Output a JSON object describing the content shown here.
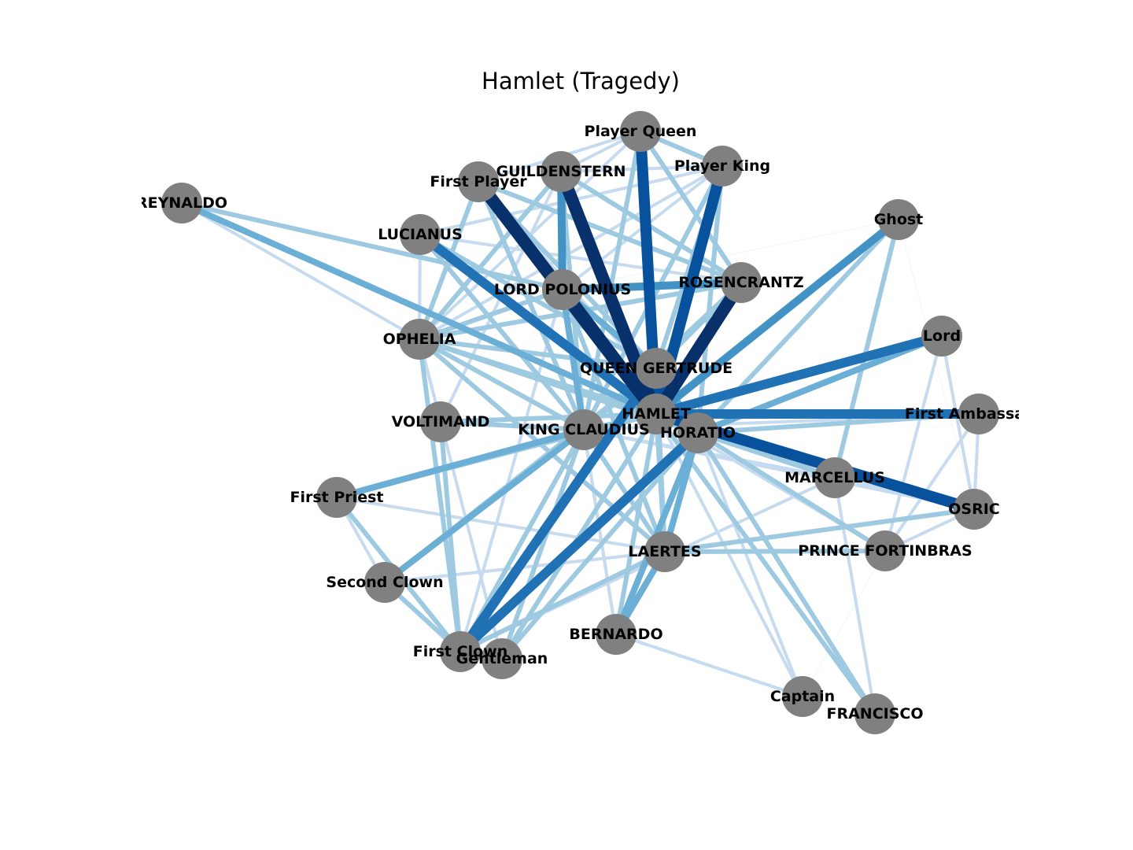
{
  "title": "Hamlet (Tragedy)",
  "colors": {
    "node": "#808080",
    "label": "#000000",
    "edge_scale": [
      "#deebf7",
      "#c6dbef",
      "#9ecae1",
      "#6baed6",
      "#4292c6",
      "#2171b5",
      "#08519c",
      "#08306b"
    ]
  },
  "chart_data": {
    "type": "network",
    "title": "Hamlet (Tragedy)",
    "nodes": [
      {
        "id": "REYNALDO",
        "label": "REYNALDO"
      },
      {
        "id": "First Player",
        "label": "First Player"
      },
      {
        "id": "GUILDENSTERN",
        "label": "GUILDENSTERN"
      },
      {
        "id": "Player Queen",
        "label": "Player Queen"
      },
      {
        "id": "Player King",
        "label": "Player King"
      },
      {
        "id": "Ghost",
        "label": "Ghost"
      },
      {
        "id": "LUCIANUS",
        "label": "LUCIANUS"
      },
      {
        "id": "LORD POLONIUS",
        "label": "LORD POLONIUS"
      },
      {
        "id": "ROSENCRANTZ",
        "label": "ROSENCRANTZ"
      },
      {
        "id": "Lord",
        "label": "Lord"
      },
      {
        "id": "OPHELIA",
        "label": "OPHELIA"
      },
      {
        "id": "QUEEN GERTRUDE",
        "label": "QUEEN GERTRUDE"
      },
      {
        "id": "First Ambassador",
        "label": "First Ambassador"
      },
      {
        "id": "HAMLET",
        "label": "HAMLET"
      },
      {
        "id": "VOLTIMAND",
        "label": "VOLTIMAND"
      },
      {
        "id": "KING CLAUDIUS",
        "label": "KING CLAUDIUS"
      },
      {
        "id": "HORATIO",
        "label": "HORATIO"
      },
      {
        "id": "MARCELLUS",
        "label": "MARCELLUS"
      },
      {
        "id": "First Priest",
        "label": "First Priest"
      },
      {
        "id": "OSRIC",
        "label": "OSRIC"
      },
      {
        "id": "LAERTES",
        "label": "LAERTES"
      },
      {
        "id": "PRINCE FORTINBRAS",
        "label": "PRINCE FORTINBRAS"
      },
      {
        "id": "Second Clown",
        "label": "Second Clown"
      },
      {
        "id": "BERNARDO",
        "label": "BERNARDO"
      },
      {
        "id": "First Clown",
        "label": "First Clown"
      },
      {
        "id": "Gentleman",
        "label": "Gentleman"
      },
      {
        "id": "Captain",
        "label": "Captain"
      },
      {
        "id": "FRANCISCO",
        "label": "FRANCISCO"
      }
    ],
    "edges": [
      {
        "source": "REYNALDO",
        "target": "HAMLET",
        "weight": 3
      },
      {
        "source": "REYNALDO",
        "target": "OPHELIA",
        "weight": 1
      },
      {
        "source": "REYNALDO",
        "target": "LORD POLONIUS",
        "weight": 2
      },
      {
        "source": "First Player",
        "target": "HAMLET",
        "weight": 7
      },
      {
        "source": "First Player",
        "target": "KING CLAUDIUS",
        "weight": 2
      },
      {
        "source": "First Player",
        "target": "QUEEN GERTRUDE",
        "weight": 2
      },
      {
        "source": "First Player",
        "target": "ROSENCRANTZ",
        "weight": 2
      },
      {
        "source": "First Player",
        "target": "LORD POLONIUS",
        "weight": 2
      },
      {
        "source": "First Player",
        "target": "OPHELIA",
        "weight": 2
      },
      {
        "source": "First Player",
        "target": "HORATIO",
        "weight": 1
      },
      {
        "source": "GUILDENSTERN",
        "target": "HAMLET",
        "weight": 7
      },
      {
        "source": "GUILDENSTERN",
        "target": "LORD POLONIUS",
        "weight": 4
      },
      {
        "source": "GUILDENSTERN",
        "target": "ROSENCRANTZ",
        "weight": 2
      },
      {
        "source": "GUILDENSTERN",
        "target": "Player King",
        "weight": 1
      },
      {
        "source": "GUILDENSTERN",
        "target": "OPHELIA",
        "weight": 2
      },
      {
        "source": "GUILDENSTERN",
        "target": "KING CLAUDIUS",
        "weight": 2
      },
      {
        "source": "GUILDENSTERN",
        "target": "VOLTIMAND",
        "weight": 1
      },
      {
        "source": "GUILDENSTERN",
        "target": "Player Queen",
        "weight": 1
      },
      {
        "source": "Player Queen",
        "target": "HAMLET",
        "weight": 6
      },
      {
        "source": "Player Queen",
        "target": "Player King",
        "weight": 2
      },
      {
        "source": "Player Queen",
        "target": "QUEEN GERTRUDE",
        "weight": 2
      },
      {
        "source": "Player Queen",
        "target": "ROSENCRANTZ",
        "weight": 2
      },
      {
        "source": "Player Queen",
        "target": "OPHELIA",
        "weight": 1
      },
      {
        "source": "Player Queen",
        "target": "First Player",
        "weight": 1
      },
      {
        "source": "Player Queen",
        "target": "KING CLAUDIUS",
        "weight": 2
      },
      {
        "source": "Player King",
        "target": "HAMLET",
        "weight": 6
      },
      {
        "source": "Player King",
        "target": "QUEEN GERTRUDE",
        "weight": 2
      },
      {
        "source": "Player King",
        "target": "LORD POLONIUS",
        "weight": 1
      },
      {
        "source": "Player King",
        "target": "OPHELIA",
        "weight": 1
      },
      {
        "source": "Player King",
        "target": "KING CLAUDIUS",
        "weight": 2
      },
      {
        "source": "Player King",
        "target": "HORATIO",
        "weight": 2
      },
      {
        "source": "Player King",
        "target": "LUCIANUS",
        "weight": 1
      },
      {
        "source": "Ghost",
        "target": "HAMLET",
        "weight": 4
      },
      {
        "source": "Ghost",
        "target": "MARCELLUS",
        "weight": 2
      },
      {
        "source": "Ghost",
        "target": "HORATIO",
        "weight": 2
      },
      {
        "source": "Ghost",
        "target": "LORD POLONIUS",
        "weight": 0
      },
      {
        "source": "Ghost",
        "target": "OSRIC",
        "weight": 0
      },
      {
        "source": "LUCIANUS",
        "target": "HAMLET",
        "weight": 5
      },
      {
        "source": "LUCIANUS",
        "target": "QUEEN GERTRUDE",
        "weight": 2
      },
      {
        "source": "LUCIANUS",
        "target": "OPHELIA",
        "weight": 1
      },
      {
        "source": "LUCIANUS",
        "target": "KING CLAUDIUS",
        "weight": 2
      },
      {
        "source": "LORD POLONIUS",
        "target": "HAMLET",
        "weight": 7
      },
      {
        "source": "LORD POLONIUS",
        "target": "ROSENCRANTZ",
        "weight": 4
      },
      {
        "source": "LORD POLONIUS",
        "target": "QUEEN GERTRUDE",
        "weight": 3
      },
      {
        "source": "LORD POLONIUS",
        "target": "KING CLAUDIUS",
        "weight": 3
      },
      {
        "source": "LORD POLONIUS",
        "target": "OPHELIA",
        "weight": 2
      },
      {
        "source": "LORD POLONIUS",
        "target": "LAERTES",
        "weight": 2
      },
      {
        "source": "LORD POLONIUS",
        "target": "First Clown",
        "weight": 1
      },
      {
        "source": "ROSENCRANTZ",
        "target": "HAMLET",
        "weight": 7
      },
      {
        "source": "ROSENCRANTZ",
        "target": "OPHELIA",
        "weight": 2
      },
      {
        "source": "ROSENCRANTZ",
        "target": "KING CLAUDIUS",
        "weight": 2
      },
      {
        "source": "ROSENCRANTZ",
        "target": "QUEEN GERTRUDE",
        "weight": 2
      },
      {
        "source": "ROSENCRANTZ",
        "target": "LUCIANUS",
        "weight": 1
      },
      {
        "source": "Lord",
        "target": "HAMLET",
        "weight": 5
      },
      {
        "source": "Lord",
        "target": "HORATIO",
        "weight": 3
      },
      {
        "source": "Lord",
        "target": "OSRIC",
        "weight": 1
      },
      {
        "source": "Lord",
        "target": "PRINCE FORTINBRAS",
        "weight": 1
      },
      {
        "source": "OPHELIA",
        "target": "HAMLET",
        "weight": 2
      },
      {
        "source": "OPHELIA",
        "target": "QUEEN GERTRUDE",
        "weight": 2
      },
      {
        "source": "OPHELIA",
        "target": "KING CLAUDIUS",
        "weight": 2
      },
      {
        "source": "OPHELIA",
        "target": "LAERTES",
        "weight": 2
      },
      {
        "source": "OPHELIA",
        "target": "First Clown",
        "weight": 2
      },
      {
        "source": "OPHELIA",
        "target": "VOLTIMAND",
        "weight": 1
      },
      {
        "source": "OPHELIA",
        "target": "HORATIO",
        "weight": 2
      },
      {
        "source": "OPHELIA",
        "target": "Gentleman",
        "weight": 1
      },
      {
        "source": "QUEEN GERTRUDE",
        "target": "HAMLET",
        "weight": 5
      },
      {
        "source": "QUEEN GERTRUDE",
        "target": "HORATIO",
        "weight": 3
      },
      {
        "source": "QUEEN GERTRUDE",
        "target": "First Clown",
        "weight": 5
      },
      {
        "source": "QUEEN GERTRUDE",
        "target": "LAERTES",
        "weight": 2
      },
      {
        "source": "QUEEN GERTRUDE",
        "target": "Second Clown",
        "weight": 2
      },
      {
        "source": "QUEEN GERTRUDE",
        "target": "KING CLAUDIUS",
        "weight": 2
      },
      {
        "source": "First Ambassador",
        "target": "HAMLET",
        "weight": 5
      },
      {
        "source": "First Ambassador",
        "target": "HORATIO",
        "weight": 2
      },
      {
        "source": "First Ambassador",
        "target": "KING CLAUDIUS",
        "weight": 1
      },
      {
        "source": "First Ambassador",
        "target": "OSRIC",
        "weight": 1
      },
      {
        "source": "First Ambassador",
        "target": "PRINCE FORTINBRAS",
        "weight": 1
      },
      {
        "source": "VOLTIMAND",
        "target": "KING CLAUDIUS",
        "weight": 2
      },
      {
        "source": "VOLTIMAND",
        "target": "HAMLET",
        "weight": 2
      },
      {
        "source": "VOLTIMAND",
        "target": "First Clown",
        "weight": 2
      },
      {
        "source": "KING CLAUDIUS",
        "target": "HAMLET",
        "weight": 2
      },
      {
        "source": "KING CLAUDIUS",
        "target": "Second Clown",
        "weight": 3
      },
      {
        "source": "KING CLAUDIUS",
        "target": "First Priest",
        "weight": 3
      },
      {
        "source": "KING CLAUDIUS",
        "target": "LAERTES",
        "weight": 2
      },
      {
        "source": "KING CLAUDIUS",
        "target": "Gentleman",
        "weight": 2
      },
      {
        "source": "KING CLAUDIUS",
        "target": "BERNARDO",
        "weight": 1
      },
      {
        "source": "KING CLAUDIUS",
        "target": "First Clown",
        "weight": 2
      },
      {
        "source": "KING CLAUDIUS",
        "target": "OSRIC",
        "weight": 1
      },
      {
        "source": "HAMLET",
        "target": "HORATIO",
        "weight": 2
      },
      {
        "source": "HAMLET",
        "target": "First Priest",
        "weight": 2
      },
      {
        "source": "HAMLET",
        "target": "OSRIC",
        "weight": 6
      },
      {
        "source": "HAMLET",
        "target": "MARCELLUS",
        "weight": 2
      },
      {
        "source": "HAMLET",
        "target": "LAERTES",
        "weight": 2
      },
      {
        "source": "HAMLET",
        "target": "BERNARDO",
        "weight": 2
      },
      {
        "source": "HAMLET",
        "target": "Captain",
        "weight": 1
      },
      {
        "source": "HAMLET",
        "target": "FRANCISCO",
        "weight": 2
      },
      {
        "source": "HAMLET",
        "target": "Gentleman",
        "weight": 2
      },
      {
        "source": "HAMLET",
        "target": "PRINCE FORTINBRAS",
        "weight": 1
      },
      {
        "source": "HORATIO",
        "target": "First Clown",
        "weight": 5
      },
      {
        "source": "HORATIO",
        "target": "LAERTES",
        "weight": 3
      },
      {
        "source": "HORATIO",
        "target": "BERNARDO",
        "weight": 3
      },
      {
        "source": "HORATIO",
        "target": "MARCELLUS",
        "weight": 2
      },
      {
        "source": "HORATIO",
        "target": "OSRIC",
        "weight": 2
      },
      {
        "source": "HORATIO",
        "target": "PRINCE FORTINBRAS",
        "weight": 2
      },
      {
        "source": "HORATIO",
        "target": "Gentleman",
        "weight": 2
      },
      {
        "source": "HORATIO",
        "target": "FRANCISCO",
        "weight": 2
      },
      {
        "source": "HORATIO",
        "target": "Captain",
        "weight": 1
      },
      {
        "source": "MARCELLUS",
        "target": "KING CLAUDIUS",
        "weight": 1
      },
      {
        "source": "MARCELLUS",
        "target": "OSRIC",
        "weight": 1
      },
      {
        "source": "MARCELLUS",
        "target": "FRANCISCO",
        "weight": 1
      },
      {
        "source": "MARCELLUS",
        "target": "First Clown",
        "weight": 1
      },
      {
        "source": "First Priest",
        "target": "First Clown",
        "weight": 2
      },
      {
        "source": "First Priest",
        "target": "Second Clown",
        "weight": 1
      },
      {
        "source": "First Priest",
        "target": "LAERTES",
        "weight": 1
      },
      {
        "source": "OSRIC",
        "target": "LAERTES",
        "weight": 2
      },
      {
        "source": "OSRIC",
        "target": "PRINCE FORTINBRAS",
        "weight": 1
      },
      {
        "source": "LAERTES",
        "target": "First Clown",
        "weight": 2
      },
      {
        "source": "LAERTES",
        "target": "BERNARDO",
        "weight": 3
      },
      {
        "source": "LAERTES",
        "target": "PRINCE FORTINBRAS",
        "weight": 2
      },
      {
        "source": "LAERTES",
        "target": "Second Clown",
        "weight": 1
      },
      {
        "source": "Second Clown",
        "target": "First Clown",
        "weight": 2
      },
      {
        "source": "BERNARDO",
        "target": "Captain",
        "weight": 1
      },
      {
        "source": "BERNARDO",
        "target": "KING CLAUDIUS",
        "weight": 1
      },
      {
        "source": "First Clown",
        "target": "Gentleman",
        "weight": 1
      },
      {
        "source": "PRINCE FORTINBRAS",
        "target": "Captain",
        "weight": 0
      }
    ]
  }
}
